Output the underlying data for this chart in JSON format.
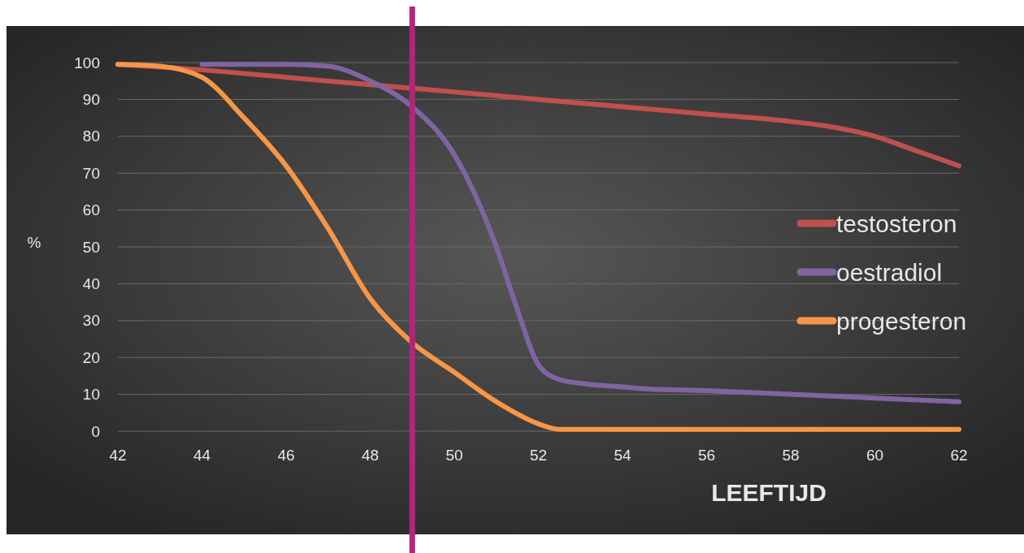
{
  "chart_data": {
    "type": "line",
    "xlabel": "LEEFTIJD",
    "ylabel": "%",
    "xlim": [
      42,
      62
    ],
    "xticks": [
      42,
      44,
      46,
      48,
      50,
      52,
      54,
      56,
      58,
      60,
      62
    ],
    "ylim": [
      0,
      100
    ],
    "yticks": [
      0,
      10,
      20,
      30,
      40,
      50,
      60,
      70,
      80,
      90,
      100
    ],
    "grid": "y",
    "legend": "right",
    "line_style": "solid",
    "marker": "none",
    "ref_lines": [
      {
        "axis": "x",
        "value": 49,
        "color": "#b5247a"
      }
    ],
    "series": [
      {
        "name": "testosteron",
        "color": "#c0504d",
        "x": [
          42,
          44,
          46,
          48,
          50,
          52,
          54,
          56,
          58,
          59,
          60,
          61,
          62
        ],
        "values": [
          99.5,
          98,
          96,
          94,
          92,
          90,
          88,
          86,
          84,
          82.5,
          80,
          76,
          72
        ]
      },
      {
        "name": "oestradiol",
        "color": "#8064a2",
        "x": [
          44,
          46,
          47,
          48,
          49,
          50,
          51,
          51.5,
          52,
          52.5,
          53,
          54,
          54.5,
          56,
          58,
          60,
          62
        ],
        "values": [
          99.5,
          99.5,
          99,
          95,
          88,
          75,
          50,
          33,
          18,
          14,
          13,
          12,
          11.5,
          11,
          10,
          9,
          8
        ]
      },
      {
        "name": "progesteron",
        "color": "#f79646",
        "x": [
          42,
          43,
          44,
          45,
          46,
          47,
          48,
          49,
          50,
          51,
          52,
          52.5,
          54,
          62
        ],
        "values": [
          99.5,
          99,
          96,
          85,
          72,
          55,
          36,
          24,
          16,
          8,
          2,
          0.5,
          0.5,
          0.5
        ]
      }
    ]
  }
}
